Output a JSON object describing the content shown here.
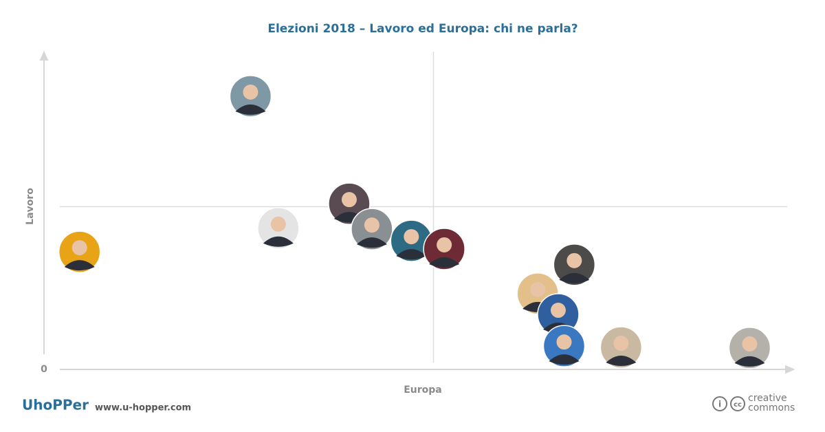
{
  "chart_data": {
    "type": "scatter",
    "title": "Elezioni 2018 – Lavoro ed Europa: chi ne parla?",
    "x_label": "Europa",
    "y_label": "Lavoro",
    "xlim": [
      0,
      100
    ],
    "ylim": [
      0,
      100
    ],
    "yticks": [
      0
    ],
    "series": [
      {
        "x": [
          2.7,
          26.1,
          29.9,
          39.6,
          42.7,
          48.1,
          52.6,
          70.4,
          65.4,
          68.2,
          69.0,
          76.8,
          94.4
        ],
        "values": [
          37.4,
          86.9,
          44.9,
          52.7,
          44.6,
          40.9,
          38.3,
          33.3,
          24.1,
          17.5,
          7.4,
          7.0,
          6.8
        ],
        "colors": [
          "#e8a317",
          "#7f98a6",
          "#e4e4e4",
          "#5a4a52",
          "#8a8f94",
          "#2d6a83",
          "#6e2b35",
          "#4d4a4a",
          "#e3c08a",
          "#2f5f9e",
          "#3a78c2",
          "#c9b9a2",
          "#b4b0aa"
        ]
      }
    ]
  },
  "footer": {
    "brand": "UhoPPer",
    "url": "www.u-hopper.com",
    "license_top": "creative",
    "license_bottom": "commons"
  }
}
